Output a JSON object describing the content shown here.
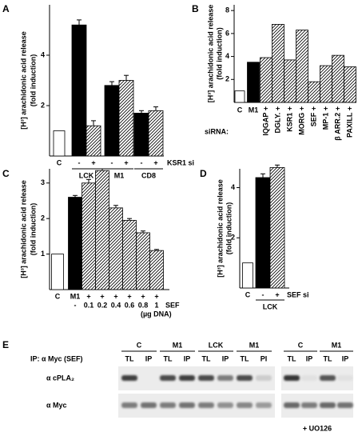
{
  "panel_labels": [
    "A",
    "B",
    "C",
    "D",
    "E"
  ],
  "chart_data": [
    {
      "type": "bar",
      "y_label": [
        "[H³] arachidonic acid release",
        "(fold induction)"
      ],
      "categories": [
        "C",
        "-",
        "+",
        "-",
        "+",
        "-",
        "+"
      ],
      "values": [
        1.0,
        5.2,
        1.2,
        2.8,
        3.0,
        1.7,
        1.8
      ],
      "errors": [
        null,
        0.2,
        0.2,
        0.15,
        0.2,
        0.1,
        0.15
      ],
      "fills": [
        "white",
        "black",
        "hatch",
        "black",
        "hatch",
        "black",
        "hatch"
      ],
      "row_label": "KSR1 si",
      "groups": [
        "LCK",
        "M1",
        "CD8"
      ],
      "ylim": [
        0,
        6
      ],
      "yticks": [
        2,
        4
      ]
    },
    {
      "type": "bar",
      "y_label": [
        "[H³] arachidonic acid release",
        "(fold induction)"
      ],
      "categories": [
        "C",
        "M1",
        "IQGAP +",
        "DGLY. +",
        "KSR1 +",
        "MORG +",
        "SEF +",
        "MP-1 +",
        "β ARR.2 +",
        "PAXILL +"
      ],
      "label_rotation": [
        0,
        0,
        90,
        90,
        90,
        90,
        90,
        90,
        90,
        90
      ],
      "values": [
        1.0,
        3.5,
        3.9,
        6.8,
        3.7,
        6.3,
        1.8,
        3.2,
        4.1,
        3.1
      ],
      "fills": [
        "white",
        "black",
        "hatch",
        "hatch",
        "hatch",
        "hatch",
        "hatch",
        "hatch",
        "hatch",
        "hatch"
      ],
      "row_label": "siRNA:",
      "ylim": [
        0,
        8.5
      ],
      "yticks": [
        2,
        4,
        6,
        8
      ]
    },
    {
      "type": "bar",
      "y_label": [
        "[H³] arachidonic acid release",
        "(fold induction)"
      ],
      "categories": [
        "C",
        "M1",
        "+",
        "+",
        "+",
        "+",
        "+",
        "+"
      ],
      "categories2": [
        null,
        "-",
        "0.1",
        "0.2",
        "0.4",
        "0.6",
        "0.8",
        "1"
      ],
      "values": [
        1.0,
        2.6,
        3.0,
        3.35,
        2.3,
        1.95,
        1.6,
        1.1
      ],
      "errors": [
        null,
        0.05,
        0.1,
        0.05,
        0.07,
        0.05,
        0.05,
        0.03
      ],
      "fills": [
        "white",
        "black",
        "hatch",
        "hatch",
        "hatch",
        "hatch",
        "hatch",
        "hatch"
      ],
      "row_label": "SEF",
      "row_label2": "(µg DNA)",
      "ylim": [
        0,
        3.4
      ],
      "yticks": [
        1,
        2,
        3
      ]
    },
    {
      "type": "bar",
      "y_label": [
        "[H³] arachidonic acid release",
        "(fold induction)"
      ],
      "categories": [
        "C",
        "-",
        "+"
      ],
      "values": [
        1.0,
        4.4,
        4.8
      ],
      "errors": [
        null,
        0.15,
        0.1
      ],
      "fills": [
        "white",
        "black",
        "hatch"
      ],
      "row_label": "SEF si",
      "groups": [
        "LCK"
      ],
      "ylim": [
        0,
        4.75
      ],
      "yticks": [
        2,
        4
      ]
    }
  ],
  "blot": {
    "ip_label": "IP: α Myc (SEF)",
    "rows": [
      "α cPLA₂",
      "α Myc"
    ],
    "groups_left": [
      "C",
      "M1",
      "LCK",
      "M1"
    ],
    "lanes_left": [
      "TL",
      "IP",
      "TL",
      "IP",
      "TL",
      "IP",
      "TL",
      "PI"
    ],
    "groups_right": [
      "C",
      "M1"
    ],
    "lanes_right": [
      "TL",
      "IP",
      "TL",
      "IP"
    ],
    "treatment": "+ UO126"
  }
}
